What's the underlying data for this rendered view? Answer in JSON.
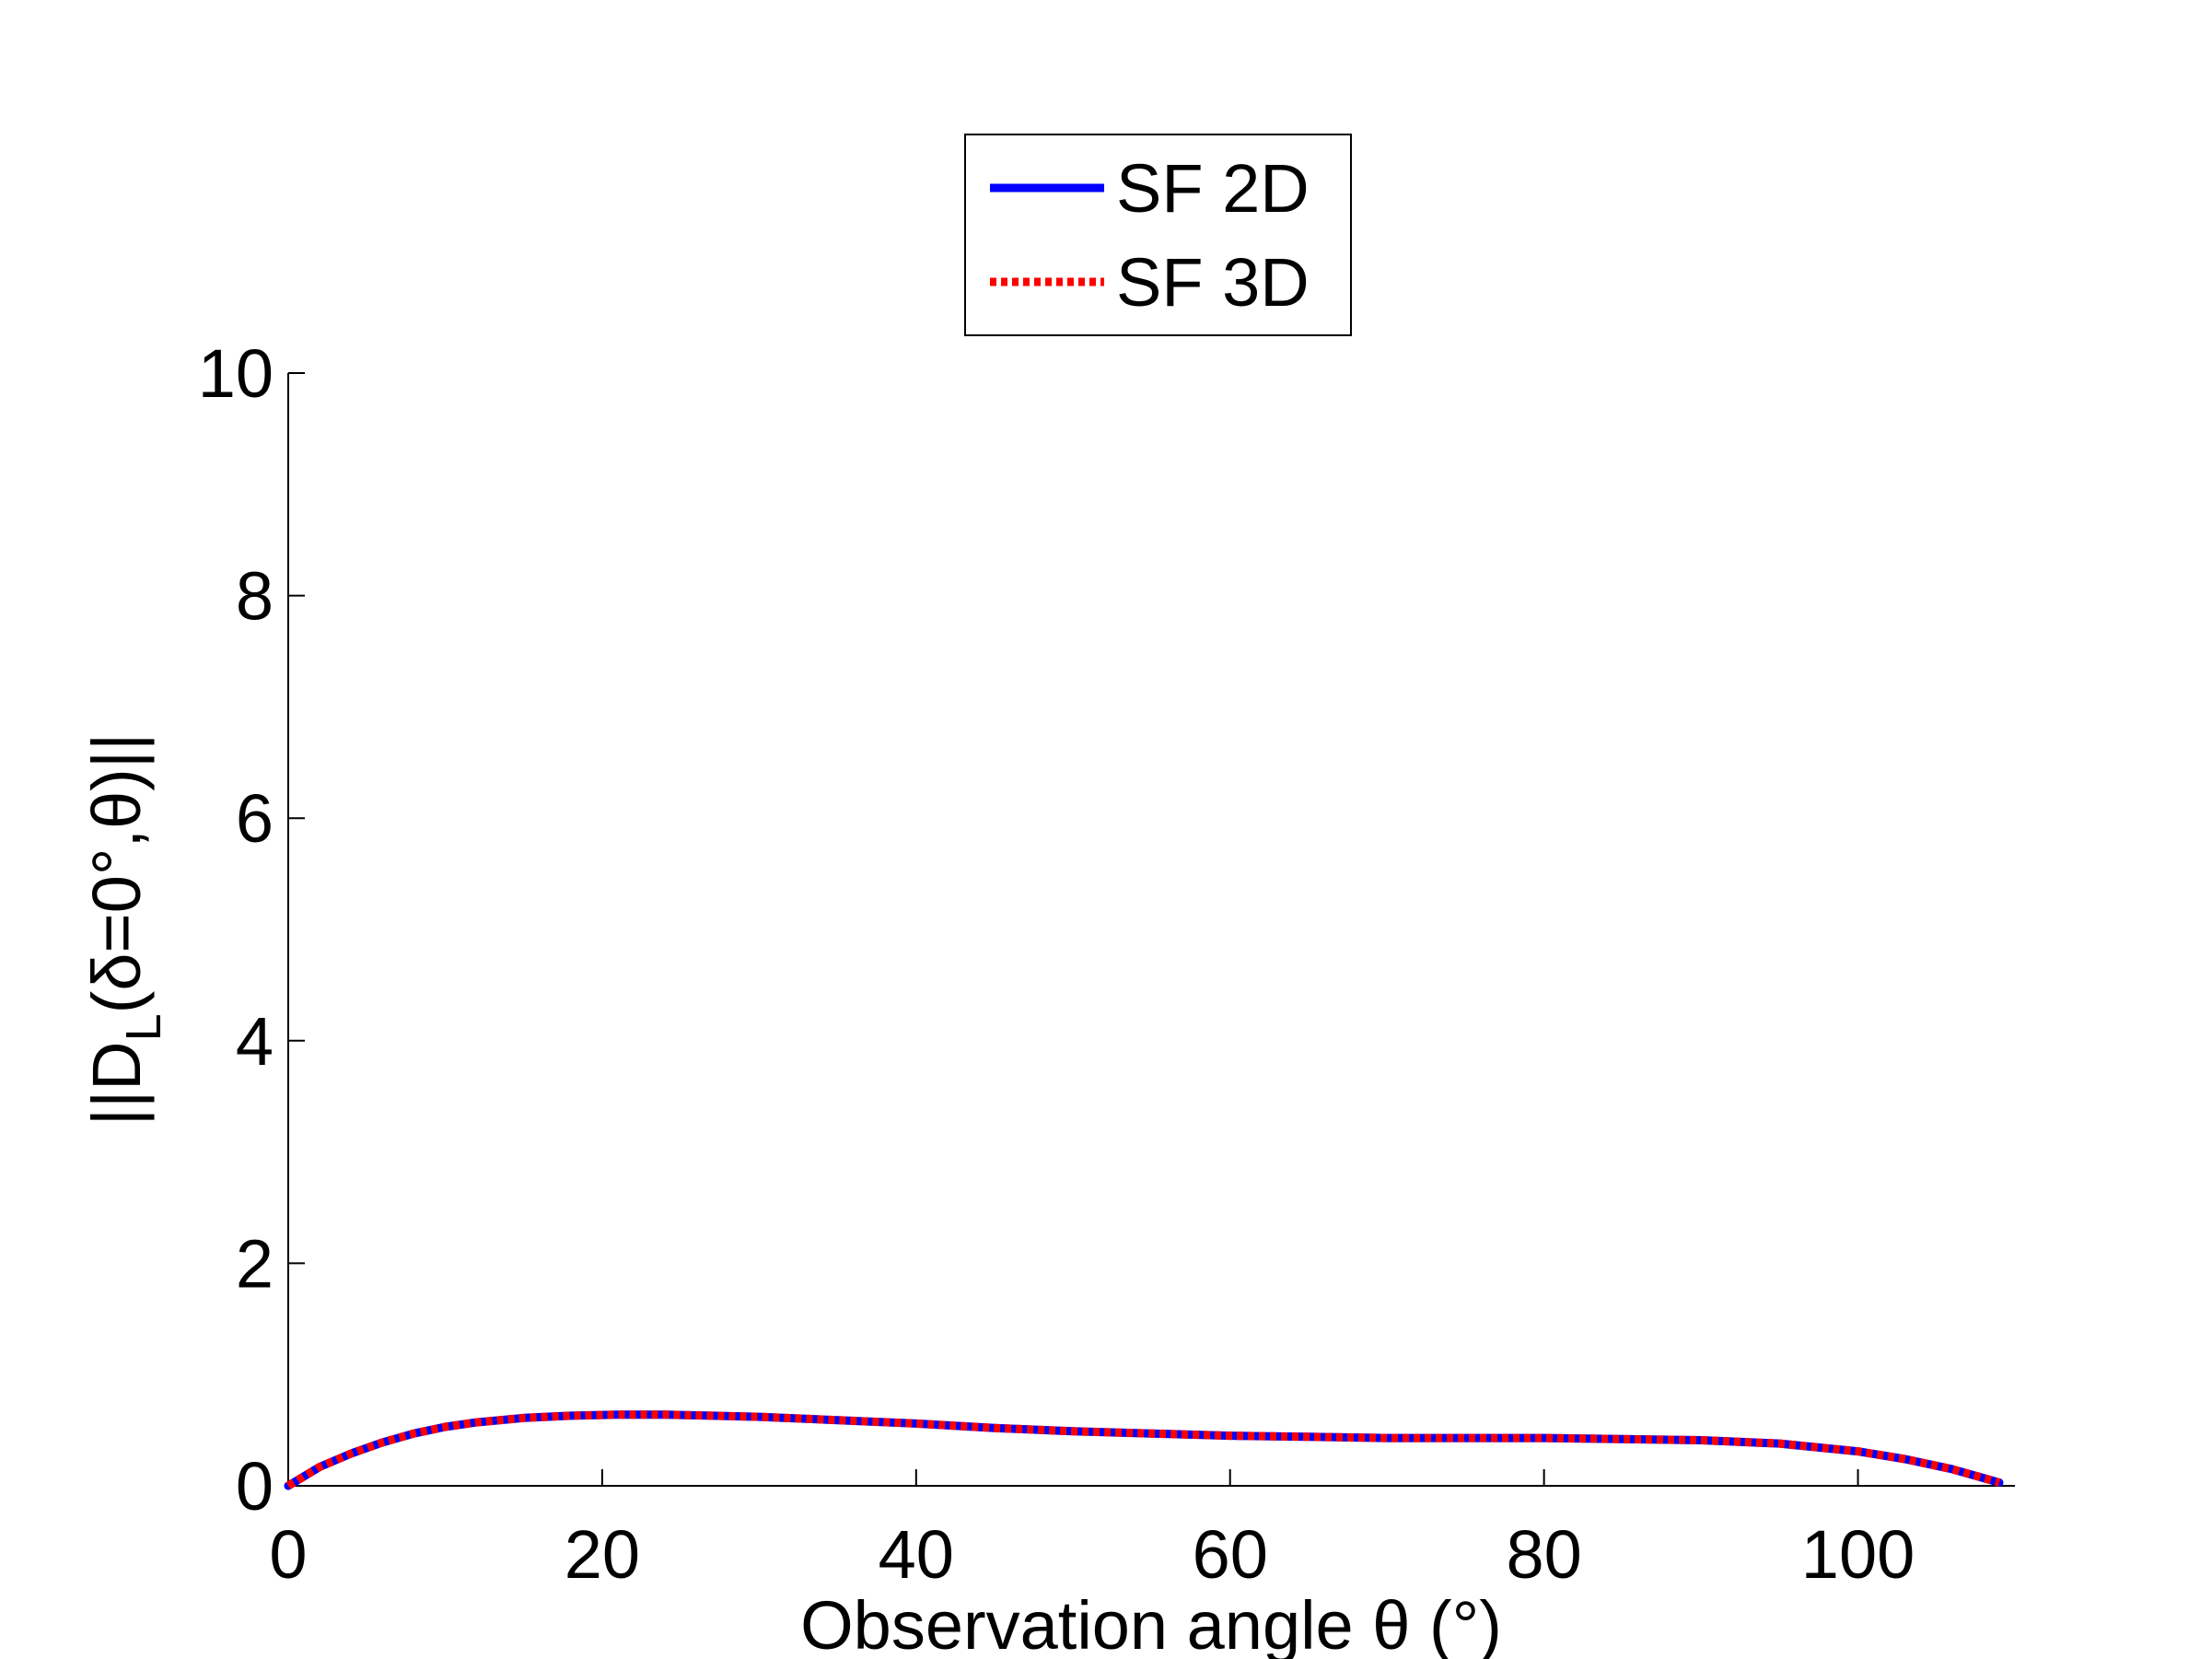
{
  "chart_data": {
    "type": "line",
    "title": "",
    "xlabel": "Observation angle θ (°)",
    "ylabel": {
      "prefix": "||D",
      "subscript": "L",
      "suffix": "(δ=0°,θ)||"
    },
    "xlim": [
      0,
      110
    ],
    "ylim": [
      0,
      10
    ],
    "xticks": [
      0,
      20,
      40,
      60,
      80,
      100
    ],
    "yticks": [
      0,
      2,
      4,
      6,
      8,
      10
    ],
    "xtick_labels": [
      "0",
      "20",
      "40",
      "60",
      "80",
      "100"
    ],
    "ytick_labels": [
      "0",
      "2",
      "4",
      "6",
      "8",
      "10"
    ],
    "grid": false,
    "legend_position": "top-center, outside",
    "series": [
      {
        "name": "SF 2D",
        "color": "#0000ff",
        "line_style": "solid",
        "x": [
          0,
          2,
          4,
          6,
          8,
          10,
          12,
          15,
          18,
          21,
          24,
          27,
          30,
          35,
          40,
          45,
          50,
          55,
          60,
          65,
          70,
          75,
          80,
          85,
          90,
          95,
          100,
          103,
          106,
          109
        ],
        "y": [
          0,
          0.17,
          0.29,
          0.39,
          0.47,
          0.53,
          0.57,
          0.61,
          0.63,
          0.64,
          0.64,
          0.63,
          0.62,
          0.59,
          0.56,
          0.52,
          0.49,
          0.47,
          0.45,
          0.44,
          0.43,
          0.43,
          0.43,
          0.42,
          0.41,
          0.38,
          0.31,
          0.24,
          0.15,
          0.03
        ]
      },
      {
        "name": "SF 3D",
        "color": "#ff0000",
        "line_style": "dotted",
        "x": [
          0,
          2,
          4,
          6,
          8,
          10,
          12,
          15,
          18,
          21,
          24,
          27,
          30,
          35,
          40,
          45,
          50,
          55,
          60,
          65,
          70,
          75,
          80,
          85,
          90,
          95,
          100,
          103,
          106,
          109
        ],
        "y": [
          0,
          0.17,
          0.29,
          0.39,
          0.47,
          0.53,
          0.57,
          0.61,
          0.63,
          0.64,
          0.64,
          0.63,
          0.62,
          0.59,
          0.56,
          0.52,
          0.49,
          0.47,
          0.45,
          0.44,
          0.43,
          0.43,
          0.43,
          0.42,
          0.41,
          0.38,
          0.31,
          0.24,
          0.15,
          0.03
        ]
      }
    ]
  }
}
